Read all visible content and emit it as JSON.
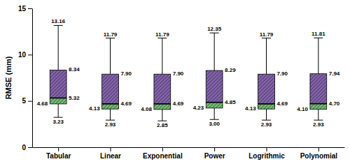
{
  "chart_data": {
    "type": "box",
    "categories": [
      "Tabular",
      "Linear",
      "Exponential",
      "Power",
      "Logrithmic",
      "Polynomial"
    ],
    "boxes": [
      {
        "values": [
          3.23,
          4.68,
          5.32,
          8.34,
          13.16
        ],
        "value_labels": [
          "3.23",
          "4.68",
          "5.32",
          "8.34",
          "13.16"
        ]
      },
      {
        "values": [
          2.93,
          4.13,
          4.69,
          7.9,
          11.79
        ],
        "value_labels": [
          "2.93",
          "4.13",
          "4.69",
          "7.90",
          "11.79"
        ]
      },
      {
        "values": [
          2.85,
          4.08,
          4.69,
          7.9,
          11.79
        ],
        "value_labels": [
          "2.85",
          "4.08",
          "4.69",
          "7.90",
          "11.79"
        ]
      },
      {
        "values": [
          3.0,
          4.23,
          4.85,
          8.29,
          12.35
        ],
        "value_labels": [
          "3.00",
          "4.23",
          "4.85",
          "8.29",
          "12.35"
        ]
      },
      {
        "values": [
          2.93,
          4.13,
          4.69,
          7.9,
          11.79
        ],
        "value_labels": [
          "2.93",
          "4.13",
          "4.69",
          "7.90",
          "11.79"
        ]
      },
      {
        "values": [
          2.93,
          4.1,
          4.7,
          7.94,
          11.81
        ],
        "value_labels": [
          "2.93",
          "4.10",
          "4.70",
          "7.94",
          "11.81"
        ]
      }
    ],
    "colors": [
      "#70B870",
      "#8060A8"
    ],
    "data_labels": true,
    "ylabel": "RMSE (mm)",
    "ylim": [
      0,
      15
    ],
    "yticks": [
      0,
      5,
      10,
      15
    ],
    "grid": false
  }
}
